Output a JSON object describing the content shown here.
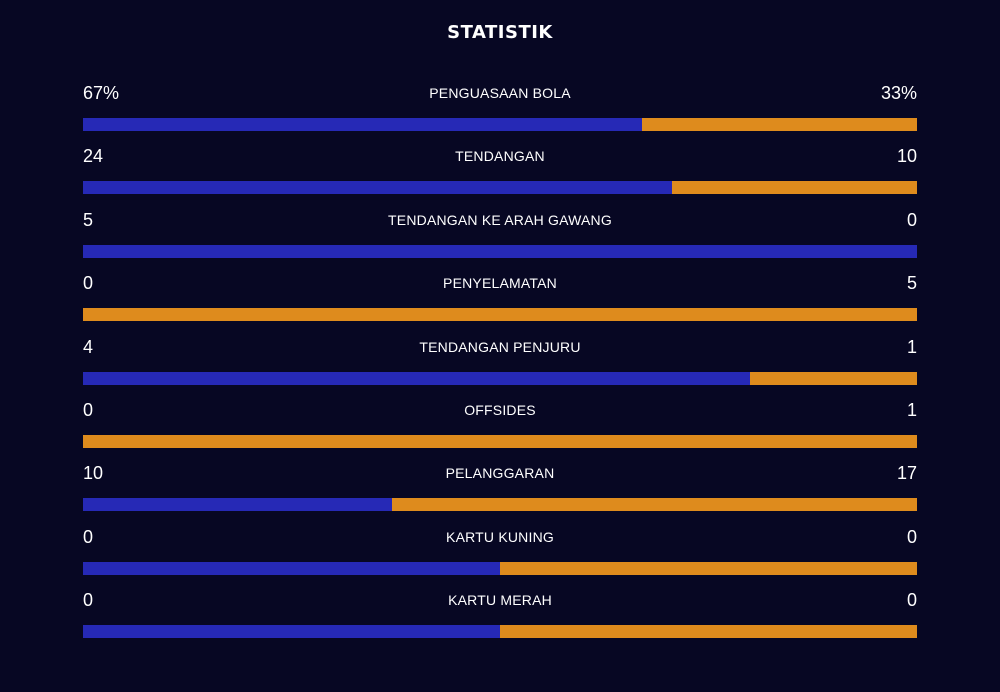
{
  "title": "STATISTIK",
  "colors": {
    "background": "#070723",
    "home": "#2629b6",
    "away": "#de8b1d"
  },
  "stats": [
    {
      "label": "PENGUASAAN BOLA",
      "home": "67%",
      "away": "33%",
      "home_value": 67,
      "away_value": 33
    },
    {
      "label": "TENDANGAN",
      "home": "24",
      "away": "10",
      "home_value": 24,
      "away_value": 10
    },
    {
      "label": "TENDANGAN KE ARAH GAWANG",
      "home": "5",
      "away": "0",
      "home_value": 5,
      "away_value": 0
    },
    {
      "label": "PENYELAMATAN",
      "home": "0",
      "away": "5",
      "home_value": 0,
      "away_value": 5
    },
    {
      "label": "TENDANGAN PENJURU",
      "home": "4",
      "away": "1",
      "home_value": 4,
      "away_value": 1
    },
    {
      "label": "OFFSIDES",
      "home": "0",
      "away": "1",
      "home_value": 0,
      "away_value": 1
    },
    {
      "label": "PELANGGARAN",
      "home": "10",
      "away": "17",
      "home_value": 10,
      "away_value": 17
    },
    {
      "label": "KARTU KUNING",
      "home": "0",
      "away": "0",
      "home_value": 0,
      "away_value": 0
    },
    {
      "label": "KARTU MERAH",
      "home": "0",
      "away": "0",
      "home_value": 0,
      "away_value": 0
    }
  ]
}
